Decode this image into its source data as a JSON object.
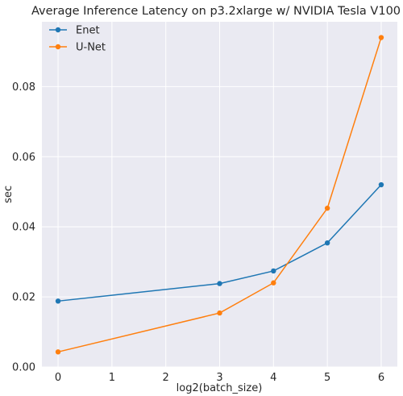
{
  "chart_data": {
    "type": "line",
    "title": "Average Inference Latency on p3.2xlarge w/ NVIDIA Tesla V100",
    "xlabel": "log2(batch_size)",
    "ylabel": "sec",
    "xlim": [
      -0.3,
      6.3
    ],
    "ylim": [
      0.0,
      0.0985
    ],
    "x_ticks": [
      0,
      1,
      2,
      3,
      4,
      5,
      6
    ],
    "x_tick_labels": [
      "0",
      "1",
      "2",
      "3",
      "4",
      "5",
      "6"
    ],
    "y_ticks": [
      0.0,
      0.02,
      0.04,
      0.06,
      0.08
    ],
    "y_tick_labels": [
      "0.00",
      "0.02",
      "0.04",
      "0.06",
      "0.08"
    ],
    "grid": true,
    "legend_position": "top-left",
    "series": [
      {
        "name": "Enet",
        "color": "#1f77b4",
        "x": [
          0,
          3,
          4,
          5,
          6
        ],
        "y": [
          0.0188,
          0.0238,
          0.0274,
          0.0354,
          0.052
        ]
      },
      {
        "name": "U-Net",
        "color": "#ff7f0e",
        "x": [
          0,
          3,
          4,
          5,
          6
        ],
        "y": [
          0.0043,
          0.0154,
          0.024,
          0.0453,
          0.094
        ]
      }
    ]
  }
}
